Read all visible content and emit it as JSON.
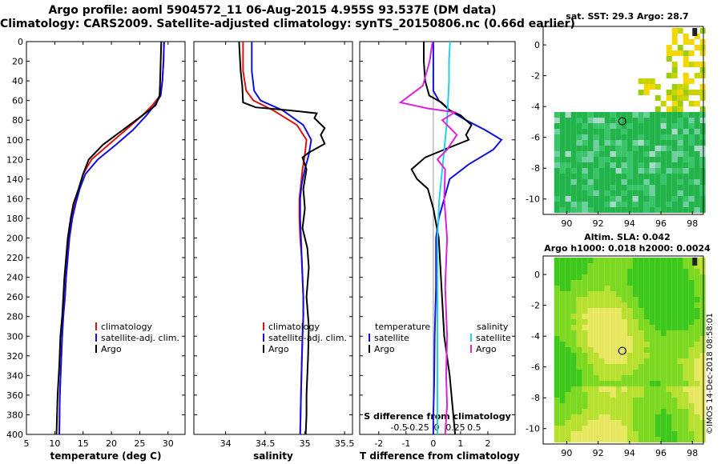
{
  "header": {
    "line1": "Argo profile: aoml 5904572_11 06-Aug-2015 4.955S 93.537E (DM data)",
    "line2": "Climatology: CARS2009. Satellite-adjusted climatology: synTS_20150806.nc (0.66d earlier)"
  },
  "colors": {
    "climatology": "#dd1111",
    "satellite": "#1111dd",
    "argo": "#000000",
    "salinity_satellite": "#22d0e8",
    "salinity_argo": "#dd22dd"
  },
  "chart_data": [
    {
      "type": "line",
      "name": "temperature-profile",
      "xlabel": "temperature (deg C)",
      "ylabel": "",
      "xlim": [
        5,
        33
      ],
      "ylim": [
        400,
        0
      ],
      "xticks": [
        5,
        10,
        15,
        20,
        25,
        30
      ],
      "yticks": [
        0,
        20,
        40,
        60,
        80,
        100,
        120,
        140,
        160,
        180,
        200,
        220,
        240,
        260,
        280,
        300,
        320,
        340,
        360,
        380,
        400
      ],
      "legend": [
        "climatology",
        "satellite-adj. clim.",
        "Argo"
      ],
      "series": [
        {
          "name": "climatology",
          "color": "#dd1111",
          "x": [
            29.3,
            29.2,
            29.0,
            28.6,
            27.2,
            25.5,
            22.5,
            19.5,
            16.5,
            15.0,
            14.3,
            13.6,
            13.0,
            12.5,
            12.2,
            12.0,
            11.8,
            11.5,
            11.3,
            11.1,
            10.9,
            10.8
          ],
          "y": [
            0,
            20,
            40,
            55,
            65,
            75,
            90,
            105,
            120,
            135,
            150,
            165,
            180,
            200,
            220,
            240,
            260,
            280,
            300,
            330,
            360,
            400
          ]
        },
        {
          "name": "satellite-adj. clim.",
          "color": "#1111dd",
          "x": [
            29.3,
            29.2,
            29.0,
            28.7,
            27.6,
            26.2,
            23.8,
            20.8,
            17.6,
            15.4,
            14.4,
            13.7,
            13.1,
            12.6,
            12.3,
            12.0,
            11.8,
            11.5,
            11.3,
            11.1,
            10.9,
            10.8
          ],
          "y": [
            0,
            20,
            40,
            55,
            65,
            75,
            90,
            105,
            120,
            135,
            150,
            165,
            180,
            200,
            220,
            240,
            260,
            280,
            300,
            330,
            360,
            400
          ]
        },
        {
          "name": "Argo",
          "color": "#000000",
          "x": [
            28.8,
            28.7,
            28.6,
            28.5,
            27.8,
            25.5,
            22.0,
            18.5,
            16.0,
            15.0,
            14.2,
            13.3,
            12.8,
            12.3,
            12.0,
            11.7,
            11.5,
            11.3,
            11.0,
            10.8,
            10.5,
            10.3
          ],
          "y": [
            0,
            20,
            40,
            55,
            65,
            75,
            90,
            105,
            120,
            135,
            150,
            165,
            180,
            200,
            220,
            240,
            260,
            280,
            300,
            330,
            360,
            400
          ]
        }
      ]
    },
    {
      "type": "line",
      "name": "salinity-profile",
      "xlabel": "salinity",
      "xlim": [
        33.6,
        35.6
      ],
      "ylim": [
        400,
        0
      ],
      "xticks": [
        34,
        34.5,
        35,
        35.5
      ],
      "legend": [
        "climatology",
        "satellite-adj. clim.",
        "Argo"
      ],
      "series": [
        {
          "name": "climatology",
          "color": "#dd1111",
          "x": [
            34.22,
            34.22,
            34.26,
            34.35,
            34.6,
            34.9,
            35.02,
            35.0,
            34.97,
            34.95,
            34.93,
            34.93,
            34.94,
            34.96,
            34.97,
            34.98,
            34.98,
            34.97,
            34.96,
            34.95,
            34.94
          ],
          "y": [
            0,
            30,
            50,
            60,
            70,
            85,
            100,
            115,
            130,
            145,
            160,
            180,
            200,
            220,
            240,
            260,
            280,
            300,
            330,
            360,
            400
          ]
        },
        {
          "name": "satellite-adj. clim.",
          "color": "#1111dd",
          "x": [
            34.33,
            34.33,
            34.36,
            34.44,
            34.72,
            34.98,
            35.08,
            35.05,
            35.0,
            34.96,
            34.94,
            34.94,
            34.95,
            34.96,
            34.97,
            34.98,
            34.98,
            34.97,
            34.96,
            34.95,
            34.94
          ],
          "y": [
            0,
            30,
            50,
            60,
            70,
            85,
            100,
            115,
            130,
            145,
            160,
            180,
            200,
            220,
            240,
            260,
            280,
            300,
            330,
            360,
            400
          ]
        },
        {
          "name": "Argo",
          "color": "#000000",
          "x": [
            34.17,
            34.18,
            34.19,
            34.21,
            34.22,
            34.38,
            34.8,
            35.15,
            35.12,
            35.25,
            35.2,
            35.25,
            35.05,
            34.97,
            35.02,
            34.98,
            35.0,
            34.97,
            35.03,
            35.05,
            35.02,
            35.05,
            35.04,
            35.03,
            35.02,
            35.02,
            35.01
          ],
          "y": [
            0,
            15,
            30,
            45,
            62,
            67,
            70,
            73,
            78,
            88,
            95,
            104,
            113,
            118,
            130,
            150,
            170,
            190,
            210,
            230,
            260,
            290,
            320,
            340,
            360,
            380,
            400
          ]
        }
      ]
    },
    {
      "type": "line",
      "name": "difference-profile",
      "xlabel": "T difference from climatology",
      "xlim": [
        -2.7,
        3.0
      ],
      "ylim": [
        400,
        0
      ],
      "xticks": [
        -2,
        -1,
        0,
        1,
        2
      ],
      "secondary_xlabel": "S difference from climatology",
      "secondary_xlim": [
        -0.8,
        0.8
      ],
      "secondary_xticks": [
        "-0.5",
        "-0.25",
        "0",
        "0.25",
        "0.5"
      ],
      "legend_temperature_title": "temperature",
      "legend_salinity_title": "salinity",
      "legend_temperature": [
        "satellite",
        "Argo"
      ],
      "legend_salinity": [
        "satellite",
        "Argo"
      ],
      "series": [
        {
          "name": "temperature satellite",
          "color": "#1111dd",
          "axis": "T",
          "x": [
            0.0,
            0.0,
            0.2,
            0.6,
            1.2,
            1.9,
            2.5,
            2.2,
            1.3,
            0.6,
            0.4,
            0.2,
            0.1,
            0.1,
            0.05,
            0.03,
            0.0,
            0.0
          ],
          "y": [
            0,
            50,
            60,
            70,
            80,
            90,
            100,
            110,
            125,
            140,
            160,
            180,
            200,
            250,
            300,
            350,
            380,
            400
          ]
        },
        {
          "name": "temperature Argo",
          "color": "#000000",
          "axis": "T",
          "x": [
            -0.35,
            -0.35,
            -0.3,
            -0.15,
            0.3,
            0.6,
            1.0,
            1.4,
            1.2,
            1.3,
            0.4,
            -0.3,
            -0.8,
            -0.6,
            -0.2,
            0.0,
            0.2,
            0.3,
            0.4,
            0.6,
            0.7,
            0.8
          ],
          "y": [
            0,
            20,
            40,
            55,
            62,
            70,
            75,
            85,
            95,
            100,
            110,
            118,
            130,
            140,
            150,
            170,
            200,
            250,
            300,
            340,
            370,
            400
          ]
        },
        {
          "name": "salinity satellite",
          "color": "#22d0e8",
          "axis": "S",
          "x": [
            0.13,
            0.12,
            0.12,
            0.11,
            0.1,
            0.08,
            0.05,
            0.02,
            0.0,
            0.0,
            0.0,
            0.0
          ],
          "y": [
            0,
            20,
            40,
            60,
            80,
            100,
            130,
            160,
            200,
            260,
            330,
            400
          ]
        },
        {
          "name": "salinity Argo",
          "color": "#dd22dd",
          "axis": "S",
          "x": [
            -0.05,
            -0.08,
            -0.15,
            -0.38,
            -0.1,
            0.18,
            0.05,
            0.2,
            0.1,
            0.0,
            0.08,
            0.07,
            0.1,
            0.08,
            0.1,
            0.09,
            0.1,
            0.08
          ],
          "y": [
            0,
            20,
            45,
            62,
            68,
            72,
            80,
            95,
            110,
            120,
            130,
            160,
            200,
            250,
            300,
            340,
            370,
            400
          ]
        }
      ]
    },
    {
      "type": "heatmap",
      "name": "sst-map",
      "title": "sat. SST: 29.3 Argo: 28.7",
      "xlim": [
        88.5,
        98.7
      ],
      "ylim": [
        -11,
        1.2
      ],
      "xticks": [
        90,
        92,
        94,
        96,
        98
      ],
      "yticks": [
        0,
        -2,
        -4,
        -6,
        -8,
        -10
      ],
      "marker_lon": 93.537,
      "marker_lat": -4.955
    },
    {
      "type": "heatmap",
      "name": "sla-map",
      "title": "Altim. SLA: 0.042",
      "subtitle": "Argo h1000: 0.018 h2000: 0.0024",
      "xlim": [
        88.5,
        98.7
      ],
      "ylim": [
        -11,
        1.2
      ],
      "xticks": [
        90,
        92,
        94,
        96,
        98
      ],
      "yticks": [
        0,
        -2,
        -4,
        -6,
        -8,
        -10
      ],
      "marker_lon": 93.537,
      "marker_lat": -4.955
    }
  ],
  "footer": {
    "stamp": "©IMOS 14-Dec-2018 08:58:01"
  }
}
